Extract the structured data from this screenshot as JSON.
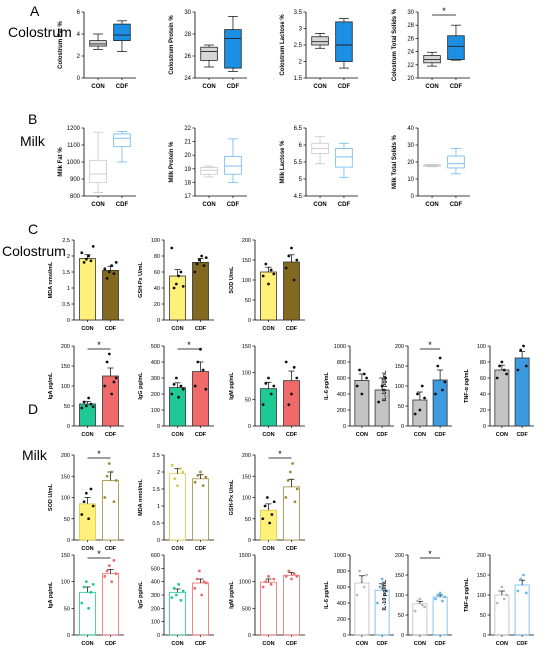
{
  "sections": [
    {
      "letter": "A",
      "label": "Colostrum"
    },
    {
      "letter": "B",
      "label": "Milk"
    },
    {
      "letter": "C",
      "label": "Colostrum"
    },
    {
      "letter": "D",
      "label": "Milk"
    }
  ],
  "colors": {
    "con_gray": "#d6d6d6",
    "cdf_blue": "#1a8fe3",
    "milk_con": "#c8c8c8",
    "milk_cdf": "#6ab8ec",
    "yellow": "#fff07a",
    "olive": "#82691f",
    "green": "#1fc995",
    "red": "#f06a6a",
    "gray_bar": "#c4c4c4",
    "blue_bar": "#3b9ae0"
  },
  "chart_data": [
    {
      "type": "box",
      "ylabel": "Colostrum Fat %",
      "yticks": [
        0,
        2,
        4,
        6
      ],
      "ylim": [
        0,
        6
      ],
      "categories": [
        "CON",
        "CDF"
      ],
      "boxes": [
        {
          "q1": 2.9,
          "med": 3.1,
          "q3": 3.4,
          "min": 2.6,
          "max": 4.0
        },
        {
          "q1": 3.4,
          "med": 3.9,
          "q3": 4.9,
          "min": 2.4,
          "max": 5.2
        }
      ],
      "sig": false
    },
    {
      "type": "box",
      "ylabel": "Colostrum Protein %",
      "yticks": [
        24,
        26,
        28,
        30
      ],
      "ylim": [
        24,
        30
      ],
      "categories": [
        "CON",
        "CDF"
      ],
      "boxes": [
        {
          "q1": 25.6,
          "med": 26.4,
          "q3": 26.8,
          "min": 25.0,
          "max": 27.0
        },
        {
          "q1": 24.9,
          "med": 27.6,
          "q3": 28.4,
          "min": 24.6,
          "max": 29.6
        }
      ],
      "sig": false
    },
    {
      "type": "box",
      "ylabel": "Colostrum Lactose %",
      "yticks": [
        1.5,
        2.0,
        2.5,
        3.0,
        3.5
      ],
      "ylim": [
        1.5,
        3.5
      ],
      "categories": [
        "CON",
        "CDF"
      ],
      "boxes": [
        {
          "q1": 2.5,
          "med": 2.6,
          "q3": 2.75,
          "min": 2.4,
          "max": 2.85
        },
        {
          "q1": 2.0,
          "med": 2.5,
          "q3": 3.2,
          "min": 1.8,
          "max": 3.3
        }
      ],
      "sig": false
    },
    {
      "type": "box",
      "ylabel": "Colostrum Total Solids %",
      "yticks": [
        20,
        22,
        24,
        26,
        28,
        30
      ],
      "ylim": [
        20,
        30
      ],
      "categories": [
        "CON",
        "CDF"
      ],
      "boxes": [
        {
          "q1": 22.3,
          "med": 22.8,
          "q3": 23.4,
          "min": 21.8,
          "max": 23.9
        },
        {
          "q1": 22.8,
          "med": 24.8,
          "q3": 26.4,
          "min": 22.7,
          "max": 28.0
        }
      ],
      "sig": true
    },
    {
      "type": "box",
      "ylabel": "Milk Fat %",
      "yticks": [
        800,
        900,
        1000,
        1100,
        1200
      ],
      "ylim": [
        800,
        1200
      ],
      "categories": [
        "CON",
        "CDF"
      ],
      "boxes": [
        {
          "q1": 880,
          "med": 930,
          "q3": 1010,
          "min": 820,
          "max": 1175
        },
        {
          "q1": 1090,
          "med": 1140,
          "q3": 1165,
          "min": 1000,
          "max": 1180
        }
      ],
      "sig": false
    },
    {
      "type": "box",
      "ylabel": "Milk Protein %",
      "yticks": [
        17,
        18,
        19,
        20,
        21,
        22
      ],
      "ylim": [
        17,
        22
      ],
      "categories": [
        "CON",
        "CDF"
      ],
      "boxes": [
        {
          "q1": 18.6,
          "med": 18.9,
          "q3": 19.1,
          "min": 18.4,
          "max": 19.2
        },
        {
          "q1": 18.6,
          "med": 19.2,
          "q3": 19.9,
          "min": 18.0,
          "max": 21.2
        }
      ],
      "sig": false
    },
    {
      "type": "box",
      "ylabel": "Milk Lactose %",
      "yticks": [
        4.5,
        5.0,
        5.5,
        6.0,
        6.5
      ],
      "ylim": [
        4.5,
        6.5
      ],
      "categories": [
        "CON",
        "CDF"
      ],
      "boxes": [
        {
          "q1": 5.75,
          "med": 5.9,
          "q3": 6.05,
          "min": 5.45,
          "max": 6.25
        },
        {
          "q1": 5.35,
          "med": 5.65,
          "q3": 5.9,
          "min": 5.05,
          "max": 6.05
        }
      ],
      "sig": false
    },
    {
      "type": "box",
      "ylabel": "Milk Total Solids %",
      "yticks": [
        0,
        10,
        20,
        30,
        40
      ],
      "ylim": [
        0,
        40
      ],
      "categories": [
        "CON",
        "CDF"
      ],
      "boxes": [
        {
          "q1": 17.5,
          "med": 18.0,
          "q3": 18.4,
          "min": 17.2,
          "max": 18.6
        },
        {
          "q1": 16.5,
          "med": 19.0,
          "q3": 23.5,
          "min": 13.0,
          "max": 28.0
        }
      ],
      "sig": false
    },
    {
      "type": "bar",
      "ylabel": "MDA nmol/mL",
      "yticks": [
        0.0,
        0.5,
        1.0,
        1.5,
        2.0,
        2.5
      ],
      "ylim": [
        0,
        2.5
      ],
      "categories": [
        "CON",
        "CDF"
      ],
      "values": [
        1.92,
        1.55
      ],
      "errors": [
        0.12,
        0.13
      ],
      "points": [
        [
          2.1,
          1.8,
          1.9,
          2.0,
          1.85,
          2.3
        ],
        [
          1.6,
          1.3,
          1.5,
          1.7,
          1.45,
          1.8
        ]
      ],
      "sig": false
    },
    {
      "type": "bar",
      "ylabel": "GSH-Px U/mL",
      "yticks": [
        0,
        20,
        40,
        60,
        80,
        100
      ],
      "ylim": [
        0,
        100
      ],
      "categories": [
        "CON",
        "CDF"
      ],
      "values": [
        55,
        72
      ],
      "errors": [
        8,
        5
      ],
      "points": [
        [
          90,
          40,
          45,
          55,
          60,
          42
        ],
        [
          60,
          70,
          75,
          80,
          68,
          78
        ]
      ],
      "sig": false
    },
    {
      "type": "bar",
      "ylabel": "SOD U/mL",
      "yticks": [
        0,
        50,
        100,
        150,
        200
      ],
      "ylim": [
        0,
        200
      ],
      "categories": [
        "CON",
        "CDF"
      ],
      "values": [
        120,
        145
      ],
      "errors": [
        12,
        18
      ],
      "points": [
        [
          110,
          140,
          90,
          125,
          115
        ],
        [
          130,
          160,
          180,
          100,
          150
        ]
      ],
      "sig": false
    },
    {
      "type": "bar",
      "ylabel": "IgA pg/mL",
      "yticks": [
        0,
        50,
        100,
        150,
        200
      ],
      "ylim": [
        0,
        200
      ],
      "categories": [
        "CON",
        "CDF"
      ],
      "values": [
        55,
        125
      ],
      "errors": [
        6,
        20
      ],
      "points": [
        [
          45,
          60,
          50,
          70,
          55,
          48
        ],
        [
          100,
          160,
          180,
          80,
          110,
          120
        ]
      ],
      "sig": true
    },
    {
      "type": "bar",
      "ylabel": "IgG pg/mL",
      "yticks": [
        0,
        100,
        200,
        300,
        400,
        500
      ],
      "ylim": [
        0,
        500
      ],
      "categories": [
        "CON",
        "CDF"
      ],
      "values": [
        240,
        340
      ],
      "errors": [
        30,
        60
      ],
      "points": [
        [
          200,
          260,
          300,
          180,
          250,
          230
        ],
        [
          250,
          400,
          480,
          350,
          230
        ]
      ],
      "sig": true
    },
    {
      "type": "bar",
      "ylabel": "IgM pg/mL",
      "yticks": [
        0,
        50,
        100,
        150
      ],
      "ylim": [
        0,
        150
      ],
      "categories": [
        "CON",
        "CDF"
      ],
      "values": [
        70,
        85
      ],
      "errors": [
        12,
        18
      ],
      "points": [
        [
          40,
          80,
          90,
          60,
          75
        ],
        [
          120,
          40,
          60,
          110,
          90
        ]
      ],
      "sig": false
    },
    {
      "type": "bar",
      "ylabel": "IL-6 pg/mL",
      "yticks": [
        0,
        200,
        400,
        600,
        800,
        1000
      ],
      "ylim": [
        0,
        1000
      ],
      "categories": [
        "CON",
        "CDF"
      ],
      "values": [
        570,
        450
      ],
      "errors": [
        80,
        150
      ],
      "points": [
        [
          500,
          700,
          400,
          650,
          600
        ],
        [
          300,
          500,
          600
        ]
      ],
      "sig": false
    },
    {
      "type": "bar",
      "ylabel": "IL-10 pg/mL",
      "yticks": [
        0,
        50,
        100,
        150,
        200
      ],
      "ylim": [
        0,
        200
      ],
      "categories": [
        "CON",
        "CDF"
      ],
      "values": [
        65,
        115
      ],
      "errors": [
        20,
        25
      ],
      "points": [
        [
          30,
          80,
          40,
          100,
          70
        ],
        [
          80,
          150,
          170,
          90,
          110
        ]
      ],
      "sig": true
    },
    {
      "type": "bar",
      "ylabel": "TNF-α pg/mL",
      "yticks": [
        0,
        20,
        40,
        60,
        80,
        100
      ],
      "ylim": [
        0,
        100
      ],
      "categories": [
        "CON",
        "CDF"
      ],
      "values": [
        70,
        85
      ],
      "errors": [
        6,
        8
      ],
      "points": [
        [
          60,
          75,
          80,
          70,
          65
        ],
        [
          70,
          95,
          100,
          75
        ]
      ],
      "sig": false
    },
    {
      "type": "bar",
      "ylabel": "SOD U/mL",
      "yticks": [
        0,
        50,
        100,
        150,
        200
      ],
      "ylim": [
        0,
        200
      ],
      "categories": [
        "CON",
        "CDF"
      ],
      "values": [
        85,
        140
      ],
      "errors": [
        15,
        20
      ],
      "points": [
        [
          60,
          90,
          110,
          50,
          120,
          80
        ],
        [
          100,
          150,
          180,
          160,
          90,
          140
        ]
      ],
      "sig": true
    },
    {
      "type": "bar",
      "ylabel": "MDA nmol/mL",
      "yticks": [
        0.0,
        0.5,
        1.0,
        1.5,
        2.0,
        2.5
      ],
      "ylim": [
        0,
        2.5
      ],
      "categories": [
        "CON",
        "CDF"
      ],
      "values": [
        1.95,
        1.8
      ],
      "errors": [
        0.15,
        0.12
      ],
      "points": [
        [
          2.2,
          1.8,
          1.6,
          2.1,
          2.0
        ],
        [
          1.7,
          1.9,
          2.0,
          1.6,
          1.85
        ]
      ],
      "sig": false
    },
    {
      "type": "bar",
      "ylabel": "GSH-Px U/mL",
      "yticks": [
        0,
        50,
        100,
        150,
        200
      ],
      "ylim": [
        0,
        200
      ],
      "categories": [
        "CON",
        "CDF"
      ],
      "values": [
        70,
        125
      ],
      "errors": [
        15,
        18
      ],
      "points": [
        [
          50,
          80,
          100,
          40,
          60,
          90
        ],
        [
          100,
          140,
          160,
          180,
          90,
          120
        ]
      ],
      "sig": true
    },
    {
      "type": "bar",
      "ylabel": "IgA pg/mL",
      "yticks": [
        0,
        50,
        100,
        150
      ],
      "ylim": [
        0,
        150
      ],
      "categories": [
        "CON",
        "CDF"
      ],
      "values": [
        80,
        115
      ],
      "errors": [
        10,
        8
      ],
      "points": [
        [
          60,
          90,
          100,
          50,
          80,
          95
        ],
        [
          110,
          120,
          130,
          100,
          140,
          115
        ]
      ],
      "sig": true
    },
    {
      "type": "bar",
      "ylabel": "IgG pg/mL",
      "yticks": [
        0,
        100,
        200,
        300,
        400,
        500,
        600
      ],
      "ylim": [
        0,
        600
      ],
      "categories": [
        "CON",
        "CDF"
      ],
      "values": [
        320,
        390
      ],
      "errors": [
        25,
        30
      ],
      "points": [
        [
          280,
          350,
          300,
          380,
          260,
          330
        ],
        [
          350,
          420,
          480,
          300,
          400,
          390
        ]
      ],
      "sig": false
    },
    {
      "type": "bar",
      "ylabel": "IgM pg/mL",
      "yticks": [
        0,
        500,
        1000,
        1500
      ],
      "ylim": [
        0,
        1500
      ],
      "categories": [
        "CON",
        "CDF"
      ],
      "values": [
        990,
        1120
      ],
      "errors": [
        60,
        50
      ],
      "points": [
        [
          900,
          1000,
          1100,
          950,
          1050
        ],
        [
          1100,
          1200,
          1050,
          1150,
          1100
        ]
      ],
      "sig": false
    },
    {
      "type": "bar",
      "ylabel": "IL-6 pg/mL",
      "yticks": [
        0,
        200,
        400,
        600,
        800,
        1000
      ],
      "ylim": [
        0,
        1000
      ],
      "categories": [
        "CON",
        "CDF"
      ],
      "values": [
        650,
        560
      ],
      "errors": [
        90,
        80
      ],
      "points": [
        [
          500,
          800,
          700,
          600,
          750
        ],
        [
          400,
          600,
          700,
          500,
          550
        ]
      ],
      "sig": false
    },
    {
      "type": "bar",
      "ylabel": "IL-10 pg/mL",
      "yticks": [
        0,
        50,
        100,
        150,
        200
      ],
      "ylim": [
        0,
        200
      ],
      "categories": [
        "CON",
        "CDF"
      ],
      "values": [
        78,
        95
      ],
      "errors": [
        6,
        5
      ],
      "points": [
        [
          60,
          85,
          90,
          75,
          70
        ],
        [
          90,
          100,
          105,
          85,
          95
        ]
      ],
      "sig": true
    },
    {
      "type": "bar",
      "ylabel": "TNF-α pg/mL",
      "yticks": [
        0,
        50,
        100,
        150,
        200
      ],
      "ylim": [
        0,
        200
      ],
      "categories": [
        "CON",
        "CDF"
      ],
      "values": [
        100,
        125
      ],
      "errors": [
        10,
        12
      ],
      "points": [
        [
          80,
          110,
          120,
          90,
          100
        ],
        [
          110,
          140,
          150,
          105
        ]
      ],
      "sig": false
    }
  ]
}
